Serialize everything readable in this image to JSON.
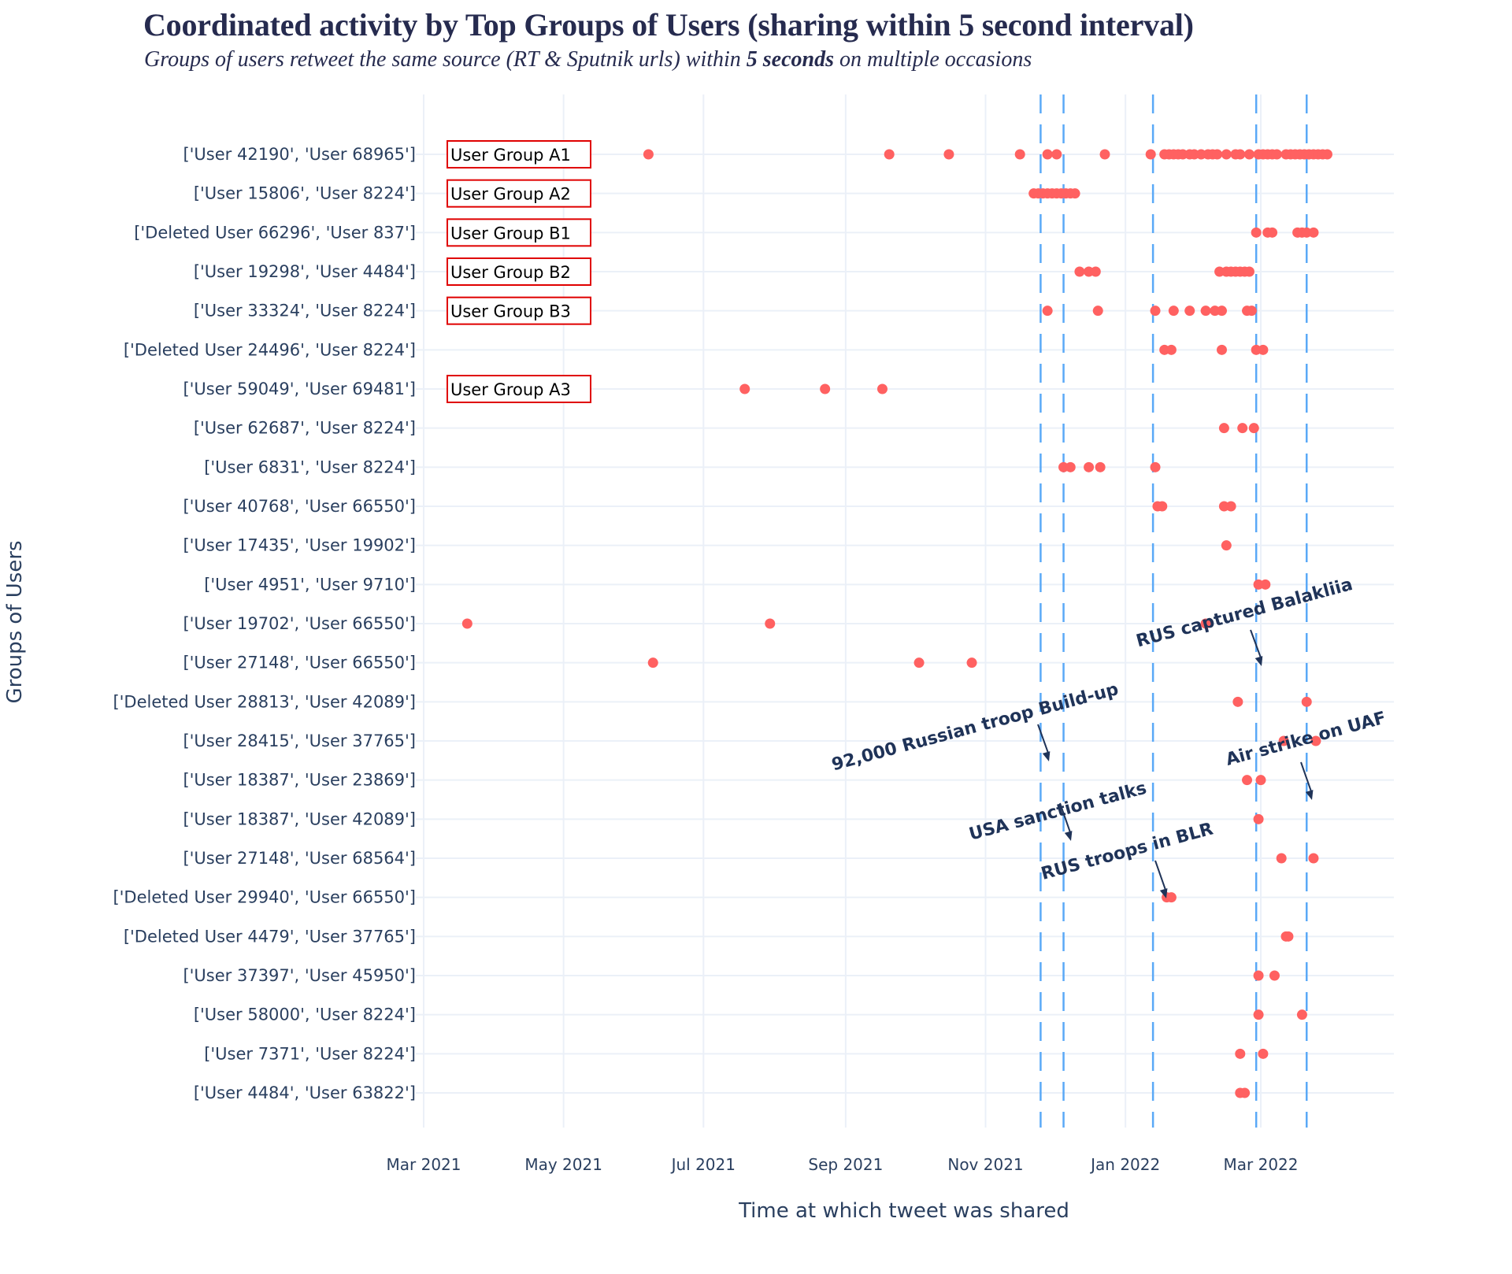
{
  "chart_data": {
    "type": "scatter",
    "title": "Coordinated activity by Top Groups of Users (sharing within 5 second interval)",
    "subtitle_parts": [
      "Groups of users retweet the same source (RT & Sputnik urls) within ",
      "5 seconds",
      " on multiple occasions"
    ],
    "xlabel": "Time at which tweet was shared",
    "ylabel": "Groups of Users",
    "xlim": [
      "2021-02-20",
      "2022-04-15"
    ],
    "x_ticks": [
      {
        "date": "2021-03-01",
        "label": "Mar 2021"
      },
      {
        "date": "2021-05-01",
        "label": "May 2021"
      },
      {
        "date": "2021-07-01",
        "label": "Jul 2021"
      },
      {
        "date": "2021-09-01",
        "label": "Sep 2021"
      },
      {
        "date": "2021-11-01",
        "label": "Nov 2021"
      },
      {
        "date": "2022-01-01",
        "label": "Jan 2022"
      },
      {
        "date": "2022-03-01",
        "label": "Mar 2022"
      }
    ],
    "grid": true,
    "marker_color": "#ff6161",
    "event_line_color": "#5aa9f7",
    "event_lines": [
      "2021-11-25",
      "2021-12-05",
      "2022-01-13",
      "2022-02-27",
      "2022-03-21"
    ],
    "annotations": [
      {
        "text": "92,000 Russian troop Build-up",
        "date": "2021-11-25",
        "row": 15.1
      },
      {
        "text": "USA sanction talks",
        "date": "2021-12-05",
        "row": 17.4
      },
      {
        "text": "RUS troops in BLR",
        "date": "2022-01-13",
        "row": 19.0
      },
      {
        "text": "RUS captured Balakliia",
        "date": "2022-02-27",
        "row": 13.0
      },
      {
        "text": "Air strike on UAF",
        "date": "2022-03-21",
        "row": 16.6
      }
    ],
    "group_labels": [
      {
        "row": 0,
        "text": "User Group A1"
      },
      {
        "row": 1,
        "text": "User Group A2"
      },
      {
        "row": 2,
        "text": "User Group B1"
      },
      {
        "row": 3,
        "text": "User Group B2"
      },
      {
        "row": 4,
        "text": "User Group B3"
      },
      {
        "row": 6,
        "text": "User Group A3"
      }
    ],
    "series": [
      {
        "name": "['User 42190', 'User 68965']",
        "dates": [
          "2021-06-07",
          "2021-09-20",
          "2021-10-16",
          "2021-11-16",
          "2021-11-28",
          "2021-12-02",
          "2021-12-23",
          "2022-01-12",
          "2022-01-18",
          "2022-01-20",
          "2022-01-22",
          "2022-01-24",
          "2022-01-26",
          "2022-01-29",
          "2022-01-31",
          "2022-02-03",
          "2022-02-06",
          "2022-02-08",
          "2022-02-10",
          "2022-02-14",
          "2022-02-18",
          "2022-02-20",
          "2022-02-24",
          "2022-02-28",
          "2022-03-02",
          "2022-03-04",
          "2022-03-06",
          "2022-03-08",
          "2022-03-12",
          "2022-03-14",
          "2022-03-16",
          "2022-03-18",
          "2022-03-20",
          "2022-03-22",
          "2022-03-24",
          "2022-03-26",
          "2022-03-28",
          "2022-03-30"
        ]
      },
      {
        "name": "['User 15806', 'User 8224']",
        "dates": [
          "2021-11-22",
          "2021-11-24",
          "2021-11-26",
          "2021-11-28",
          "2021-11-30",
          "2021-12-02",
          "2021-12-04",
          "2021-12-06",
          "2021-12-08",
          "2021-12-10"
        ]
      },
      {
        "name": "['Deleted User 66296', 'User 837']",
        "dates": [
          "2022-02-27",
          "2022-03-04",
          "2022-03-06",
          "2022-03-17",
          "2022-03-19",
          "2022-03-21",
          "2022-03-24"
        ]
      },
      {
        "name": "['User 19298', 'User 4484']",
        "dates": [
          "2021-12-12",
          "2021-12-16",
          "2021-12-19",
          "2022-02-11",
          "2022-02-14",
          "2022-02-16",
          "2022-02-18",
          "2022-02-20",
          "2022-02-22",
          "2022-02-24"
        ]
      },
      {
        "name": "['User 33324', 'User 8224']",
        "dates": [
          "2021-11-28",
          "2021-12-20",
          "2022-01-14",
          "2022-01-22",
          "2022-01-29",
          "2022-02-05",
          "2022-02-09",
          "2022-02-12",
          "2022-02-23",
          "2022-02-25"
        ]
      },
      {
        "name": "['Deleted User 24496', 'User 8224']",
        "dates": [
          "2022-01-18",
          "2022-01-21",
          "2022-02-12",
          "2022-02-27",
          "2022-03-02"
        ]
      },
      {
        "name": "['User 59049', 'User 69481']",
        "dates": [
          "2021-07-19",
          "2021-08-23",
          "2021-09-17"
        ]
      },
      {
        "name": "['User 62687', 'User 8224']",
        "dates": [
          "2022-02-13",
          "2022-02-21",
          "2022-02-26"
        ]
      },
      {
        "name": "['User 6831', 'User 8224']",
        "dates": [
          "2021-12-05",
          "2021-12-08",
          "2021-12-16",
          "2021-12-21",
          "2022-01-14"
        ]
      },
      {
        "name": "['User 40768', 'User 66550']",
        "dates": [
          "2022-01-15",
          "2022-01-17",
          "2022-02-13",
          "2022-02-16"
        ]
      },
      {
        "name": "['User 17435', 'User 19902']",
        "dates": [
          "2022-02-14"
        ]
      },
      {
        "name": "['User 4951', 'User 9710']",
        "dates": [
          "2022-02-28",
          "2022-03-03"
        ]
      },
      {
        "name": "['User 19702', 'User 66550']",
        "dates": [
          "2021-03-20",
          "2021-07-30",
          "2022-02-05"
        ]
      },
      {
        "name": "['User 27148', 'User 66550']",
        "dates": [
          "2021-06-09",
          "2021-10-03",
          "2021-10-26"
        ]
      },
      {
        "name": "['Deleted User 28813', 'User 42089']",
        "dates": [
          "2022-02-19",
          "2022-03-21"
        ]
      },
      {
        "name": "['User 28415', 'User 37765']",
        "dates": [
          "2022-03-11",
          "2022-03-25"
        ]
      },
      {
        "name": "['User 18387', 'User 23869']",
        "dates": [
          "2022-02-23",
          "2022-03-01"
        ]
      },
      {
        "name": "['User 18387', 'User 42089']",
        "dates": [
          "2022-02-28"
        ]
      },
      {
        "name": "['User 27148', 'User 68564']",
        "dates": [
          "2022-03-10",
          "2022-03-24"
        ]
      },
      {
        "name": "['Deleted User 29940', 'User 66550']",
        "dates": [
          "2022-01-19",
          "2022-01-21"
        ]
      },
      {
        "name": "['Deleted User 4479', 'User 37765']",
        "dates": [
          "2022-03-12",
          "2022-03-13"
        ]
      },
      {
        "name": "['User 37397', 'User 45950']",
        "dates": [
          "2022-02-28",
          "2022-03-07"
        ]
      },
      {
        "name": "['User 58000', 'User 8224']",
        "dates": [
          "2022-02-28",
          "2022-03-19"
        ]
      },
      {
        "name": "['User 7371', 'User 8224']",
        "dates": [
          "2022-02-20",
          "2022-03-02"
        ]
      },
      {
        "name": "['User 4484', 'User 63822']",
        "dates": [
          "2022-02-20",
          "2022-02-22"
        ]
      }
    ]
  }
}
